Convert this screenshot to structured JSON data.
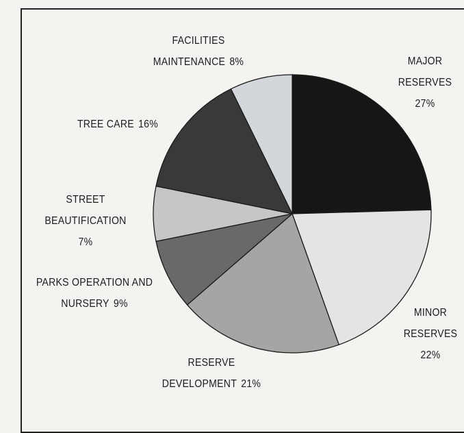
{
  "chart_data": {
    "type": "pie",
    "categories": [
      "MAJOR RESERVES",
      "MINOR RESERVES",
      "RESERVE DEVELOPMENT",
      "PARKS OPERATION AND NURSERY",
      "STREET BEAUTIFICATION",
      "TREE CARE",
      "FACILITIES MAINTENANCE"
    ],
    "values": [
      27,
      22,
      21,
      9,
      7,
      16,
      8
    ],
    "value_labels": [
      "27%",
      "22%",
      "21%",
      "9%",
      "7%",
      "16%",
      "8%"
    ],
    "colors": [
      "#161616",
      "#e4e4e4",
      "#a5a5a5",
      "#696969",
      "#c6c6c6",
      "#393939",
      "#d3d6db"
    ]
  }
}
